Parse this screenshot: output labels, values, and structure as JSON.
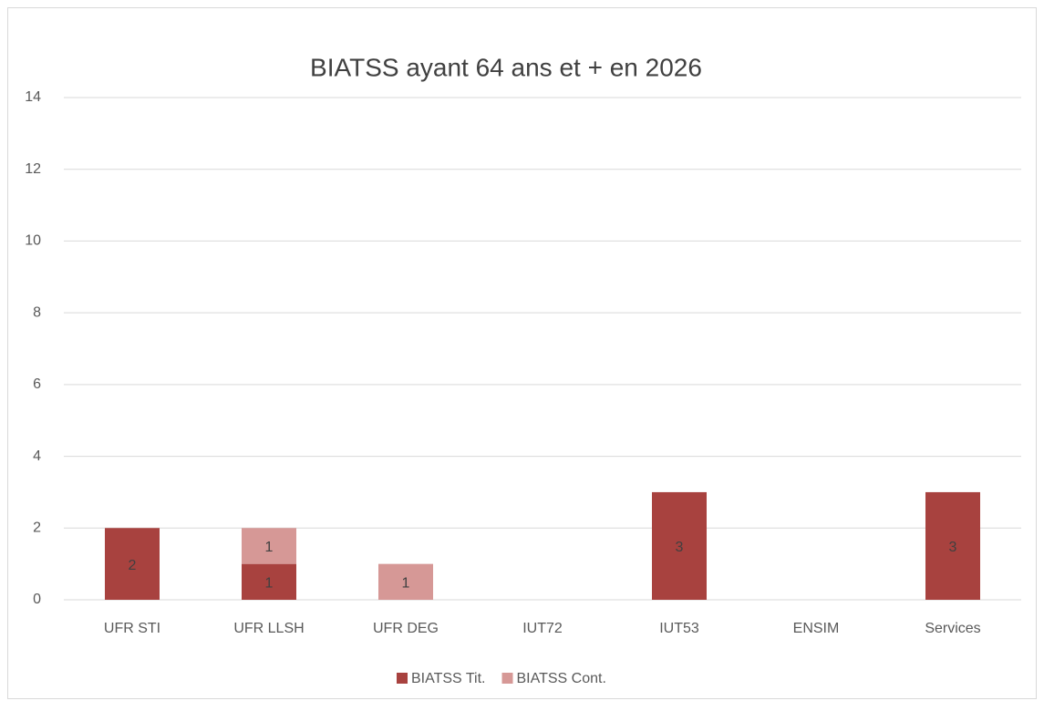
{
  "chart_data": {
    "type": "stacked_bar",
    "title": "BIATSS ayant 64 ans et + en 2026",
    "categories": [
      "UFR STI",
      "UFR LLSH",
      "UFR DEG",
      "IUT72",
      "IUT53",
      "ENSIM",
      "Services"
    ],
    "series": [
      {
        "name": "BIATSS Tit.",
        "color": "#a8423f",
        "values": [
          2,
          1,
          0,
          0,
          3,
          0,
          3
        ]
      },
      {
        "name": "BIATSS Cont.",
        "color": "#d69896",
        "values": [
          0,
          1,
          1,
          0,
          0,
          0,
          0
        ]
      }
    ],
    "ylim": [
      0,
      14
    ],
    "yticks": [
      0,
      2,
      4,
      6,
      8,
      10,
      12,
      14
    ],
    "grid": true,
    "legend": "bottom"
  }
}
